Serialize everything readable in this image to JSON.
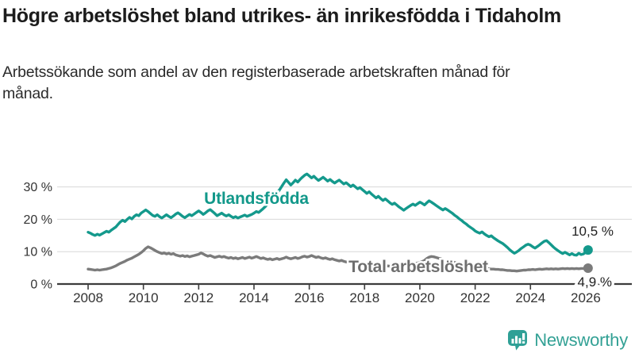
{
  "header": {
    "title": "Högre arbetslöshet bland utrikes- än inrikesfödda i Tidaholm",
    "subtitle": "Arbetssökande som andel av den registerbaserade arbetskraften månad för månad."
  },
  "colors": {
    "teal": "#14998c",
    "teal_label": "#12988a",
    "gray": "#7b7b7b",
    "gray_label": "#6e6e6e",
    "axis": "#3c3c3c",
    "grid": "#d8d8d8",
    "tick_text": "#333333",
    "annotation_text": "#1f1f1f",
    "brand": "#33a195"
  },
  "chart_data": {
    "type": "line",
    "title": "Högre arbetslöshet bland utrikes- än inrikesfödda i Tidaholm",
    "subtitle": "Arbetssökande som andel av den registerbaserade arbetskraften månad för månad.",
    "x_start_year": 2008,
    "x_unit": "month",
    "x_ticks": [
      2008,
      2010,
      2012,
      2014,
      2016,
      2018,
      2020,
      2022,
      2024,
      2026
    ],
    "y_ticks": [
      {
        "value": 0,
        "label": "0 %"
      },
      {
        "value": 10,
        "label": "10 %"
      },
      {
        "value": 20,
        "label": "20 %"
      },
      {
        "value": 30,
        "label": "30 %"
      }
    ],
    "ylim": [
      0,
      36
    ],
    "grid": true,
    "legend_position": "inline-labels",
    "series": [
      {
        "id": "utlandsfodda",
        "name": "Utlandsfödda",
        "color": "#14998c",
        "end_label": "10,5 %",
        "end_value": 10.5,
        "values": [
          16.0,
          15.7,
          15.3,
          15.0,
          15.4,
          15.1,
          15.5,
          15.9,
          16.3,
          16.0,
          16.6,
          17.1,
          17.6,
          18.4,
          19.2,
          19.7,
          19.3,
          20.0,
          20.6,
          20.1,
          20.9,
          21.4,
          21.1,
          21.9,
          22.4,
          22.9,
          22.4,
          21.8,
          21.2,
          20.9,
          21.4,
          20.8,
          20.4,
          20.9,
          21.4,
          20.9,
          20.5,
          21.0,
          21.6,
          22.0,
          21.5,
          20.9,
          20.5,
          21.0,
          21.5,
          21.1,
          21.6,
          22.1,
          22.6,
          22.1,
          21.5,
          22.0,
          22.6,
          23.0,
          22.4,
          21.8,
          21.1,
          21.5,
          21.9,
          21.4,
          21.0,
          21.4,
          20.9,
          20.5,
          20.8,
          20.4,
          20.7,
          21.0,
          21.3,
          20.9,
          21.2,
          21.5,
          21.9,
          22.4,
          22.1,
          22.7,
          23.3,
          24.0,
          24.8,
          25.6,
          26.4,
          27.2,
          28.1,
          29.0,
          30.1,
          31.2,
          32.2,
          31.4,
          30.6,
          31.3,
          32.1,
          31.5,
          32.3,
          33.0,
          33.6,
          34.0,
          33.4,
          32.8,
          33.3,
          32.6,
          32.0,
          32.5,
          33.0,
          32.4,
          31.8,
          32.3,
          31.7,
          31.2,
          31.7,
          32.1,
          31.5,
          30.9,
          31.3,
          30.7,
          30.1,
          30.6,
          30.0,
          29.4,
          29.8,
          29.2,
          28.6,
          28.0,
          28.5,
          27.8,
          27.2,
          26.6,
          27.1,
          26.4,
          25.8,
          26.3,
          25.7,
          25.1,
          24.6,
          25.0,
          24.4,
          23.8,
          23.3,
          22.8,
          23.3,
          23.8,
          24.3,
          24.7,
          24.3,
          24.8,
          25.3,
          24.9,
          24.4,
          25.1,
          25.7,
          25.3,
          24.8,
          24.3,
          23.8,
          23.3,
          22.9,
          23.3,
          22.9,
          22.4,
          21.9,
          21.3,
          20.8,
          20.2,
          19.7,
          19.1,
          18.6,
          18.0,
          17.5,
          17.0,
          16.4,
          16.0,
          15.7,
          16.1,
          15.5,
          15.0,
          14.6,
          14.9,
          14.3,
          13.8,
          13.3,
          12.9,
          12.5,
          11.9,
          11.3,
          10.6,
          10.0,
          9.5,
          9.9,
          10.4,
          11.0,
          11.5,
          12.0,
          12.3,
          12.0,
          11.5,
          11.1,
          11.6,
          12.1,
          12.7,
          13.2,
          13.4,
          12.8,
          12.1,
          11.4,
          10.8,
          10.3,
          9.8,
          9.4,
          9.8,
          9.4,
          9.0,
          9.4,
          9.0,
          8.9,
          9.5,
          9.1,
          9.3,
          9.8,
          10.5
        ]
      },
      {
        "id": "total",
        "name": "Total arbetslöshet",
        "color": "#7b7b7b",
        "end_label": "4,9 %",
        "end_value": 4.9,
        "values": [
          4.6,
          4.5,
          4.4,
          4.3,
          4.4,
          4.3,
          4.4,
          4.5,
          4.6,
          4.8,
          5.0,
          5.3,
          5.6,
          6.0,
          6.4,
          6.7,
          7.0,
          7.4,
          7.7,
          8.0,
          8.4,
          8.8,
          9.2,
          9.7,
          10.3,
          11.0,
          11.5,
          11.2,
          10.8,
          10.4,
          10.0,
          9.7,
          9.4,
          9.6,
          9.3,
          9.5,
          9.2,
          9.4,
          9.0,
          8.8,
          8.6,
          8.8,
          8.5,
          8.7,
          8.4,
          8.6,
          8.8,
          9.0,
          9.2,
          9.6,
          9.3,
          8.9,
          8.6,
          8.8,
          8.5,
          8.2,
          8.4,
          8.6,
          8.3,
          8.5,
          8.2,
          8.0,
          8.2,
          7.9,
          8.1,
          7.8,
          8.0,
          8.2,
          7.9,
          8.1,
          8.3,
          8.0,
          8.2,
          8.5,
          8.2,
          7.9,
          8.1,
          7.8,
          7.6,
          7.8,
          7.5,
          7.7,
          7.9,
          7.6,
          7.8,
          8.0,
          8.3,
          8.0,
          7.8,
          8.0,
          8.2,
          7.9,
          8.1,
          8.4,
          8.6,
          8.3,
          8.5,
          8.8,
          8.5,
          8.2,
          8.4,
          8.1,
          7.9,
          8.1,
          7.8,
          7.6,
          7.8,
          7.5,
          7.3,
          7.1,
          7.3,
          7.0,
          6.8,
          6.9,
          6.7,
          6.5,
          6.6,
          6.4,
          6.3,
          6.2,
          6.1,
          6.0,
          6.1,
          5.9,
          5.8,
          5.9,
          5.7,
          5.6,
          5.7,
          5.5,
          5.6,
          5.5,
          5.6,
          5.7,
          5.6,
          5.7,
          5.8,
          5.9,
          6.0,
          6.1,
          6.2,
          6.3,
          6.4,
          6.5,
          6.7,
          6.9,
          7.3,
          7.9,
          8.3,
          8.5,
          8.4,
          8.2,
          8.0,
          7.8,
          7.6,
          7.4,
          7.3,
          7.1,
          6.9,
          6.7,
          6.5,
          6.3,
          6.1,
          5.9,
          5.7,
          5.5,
          5.4,
          5.3,
          5.2,
          5.1,
          5.0,
          4.9,
          4.8,
          4.8,
          4.7,
          4.6,
          4.6,
          4.5,
          4.5,
          4.4,
          4.4,
          4.3,
          4.2,
          4.2,
          4.1,
          4.1,
          4.0,
          4.1,
          4.2,
          4.3,
          4.3,
          4.4,
          4.4,
          4.5,
          4.4,
          4.5,
          4.6,
          4.5,
          4.6,
          4.7,
          4.6,
          4.7,
          4.6,
          4.7,
          4.6,
          4.7,
          4.8,
          4.7,
          4.8,
          4.7,
          4.8,
          4.7,
          4.8,
          4.7,
          4.8,
          4.8,
          4.8,
          4.9
        ]
      }
    ]
  },
  "footer": {
    "brand": "Newsworthy",
    "icon": "bar-chart-speech-bubble-icon"
  }
}
